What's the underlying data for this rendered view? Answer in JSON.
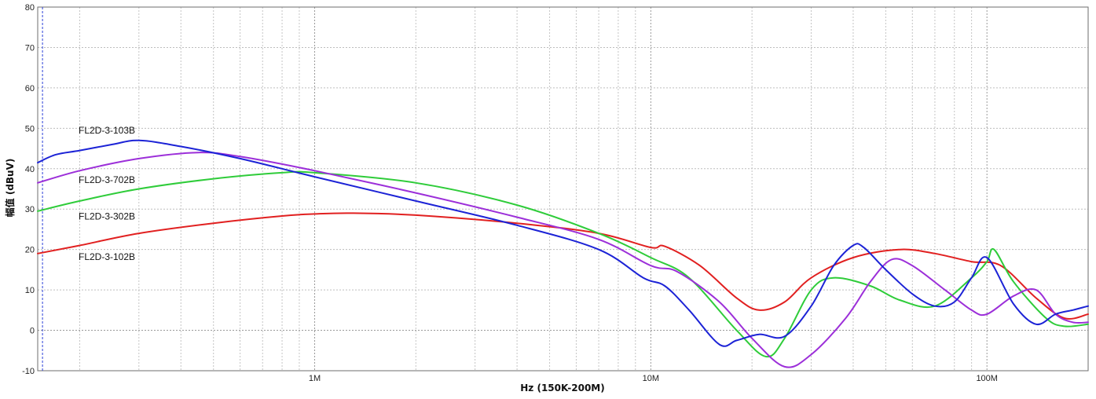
{
  "chart_data": {
    "type": "line",
    "xlabel": "Hz  (150K-200M)",
    "ylabel": "幅值 (dBuV)",
    "xscale": "log",
    "xlim": [
      150000,
      200000000
    ],
    "ylim": [
      -10,
      80
    ],
    "yticks": [
      -10,
      0,
      10,
      20,
      30,
      40,
      50,
      60,
      70,
      80
    ],
    "xticks": [
      {
        "value": 1000000,
        "label": "1M"
      },
      {
        "value": 10000000,
        "label": "10M"
      },
      {
        "value": 100000000,
        "label": "100M"
      }
    ],
    "grid": true,
    "marker_line_x": 155000,
    "series": [
      {
        "name": "FL2D-3-103B",
        "color": "#1c23d6",
        "x": [
          150000,
          170000,
          200000,
          250000,
          300000,
          400000,
          600000,
          1000000,
          2000000,
          4000000,
          7000000,
          9500000,
          11000000,
          13000000,
          16000000,
          18000000,
          21000000,
          25000000,
          30000000,
          35000000,
          40000000,
          43000000,
          50000000,
          60000000,
          70000000,
          80000000,
          90000000,
          100000000,
          120000000,
          140000000,
          160000000,
          180000000,
          200000000
        ],
        "y": [
          41.5,
          43.5,
          44.5,
          46,
          47,
          45.5,
          42.5,
          38,
          32,
          26,
          20,
          13,
          11,
          5,
          -3.5,
          -2.5,
          -1,
          -1.5,
          6,
          16,
          21,
          20.5,
          15,
          9,
          6,
          7,
          13,
          18,
          6.5,
          1.5,
          4,
          5,
          6
        ]
      },
      {
        "name": "FL2D-3-702B",
        "color": "#9c2fd9",
        "x": [
          150000,
          200000,
          300000,
          450000,
          600000,
          1000000,
          2000000,
          4000000,
          7000000,
          10000000,
          12000000,
          16000000,
          20000000,
          25000000,
          30000000,
          38000000,
          45000000,
          52000000,
          60000000,
          75000000,
          90000000,
          100000000,
          120000000,
          140000000,
          160000000,
          180000000,
          200000000
        ],
        "y": [
          36.5,
          39.5,
          42.5,
          44,
          43,
          39.5,
          34,
          28,
          22.5,
          16,
          14.5,
          7,
          -2,
          -9,
          -6,
          3,
          12,
          17.5,
          16,
          10,
          5,
          4,
          8.5,
          10,
          4,
          2,
          2
        ]
      },
      {
        "name": "FL2D-3-302B",
        "color": "#2fcc3a",
        "x": [
          150000,
          200000,
          300000,
          500000,
          800000,
          1000000,
          2000000,
          4000000,
          7000000,
          10000000,
          13000000,
          18000000,
          22000000,
          25000000,
          30000000,
          35000000,
          45000000,
          55000000,
          70000000,
          90000000,
          100000000,
          105000000,
          120000000,
          150000000,
          170000000,
          200000000
        ],
        "y": [
          29.5,
          32,
          35,
          37.5,
          39,
          39,
          36.5,
          31,
          24,
          18,
          13,
          0,
          -6.5,
          -2,
          10,
          13,
          11,
          7.5,
          6,
          13,
          17,
          20,
          12,
          3,
          1,
          1.5
        ]
      },
      {
        "name": "FL2D-3-102B",
        "color": "#e12020",
        "x": [
          150000,
          200000,
          300000,
          500000,
          800000,
          1000000,
          1300000,
          2000000,
          4000000,
          7000000,
          10000000,
          11000000,
          14000000,
          18000000,
          21000000,
          25000000,
          30000000,
          40000000,
          55000000,
          70000000,
          90000000,
          110000000,
          140000000,
          170000000,
          200000000
        ],
        "y": [
          19,
          21,
          24,
          26.5,
          28.3,
          28.8,
          29,
          28.5,
          26.5,
          24,
          20.5,
          20.8,
          16,
          8,
          5,
          7,
          13,
          18,
          20,
          19,
          17,
          16,
          8,
          3,
          4
        ]
      }
    ],
    "annotations": [
      {
        "text": "FL2D-3-103B",
        "y": 49.5
      },
      {
        "text": "FL2D-3-702B",
        "y": 37.2
      },
      {
        "text": "FL2D-3-302B",
        "y": 28.2
      },
      {
        "text": "FL2D-3-102B",
        "y": 18.2
      }
    ]
  }
}
